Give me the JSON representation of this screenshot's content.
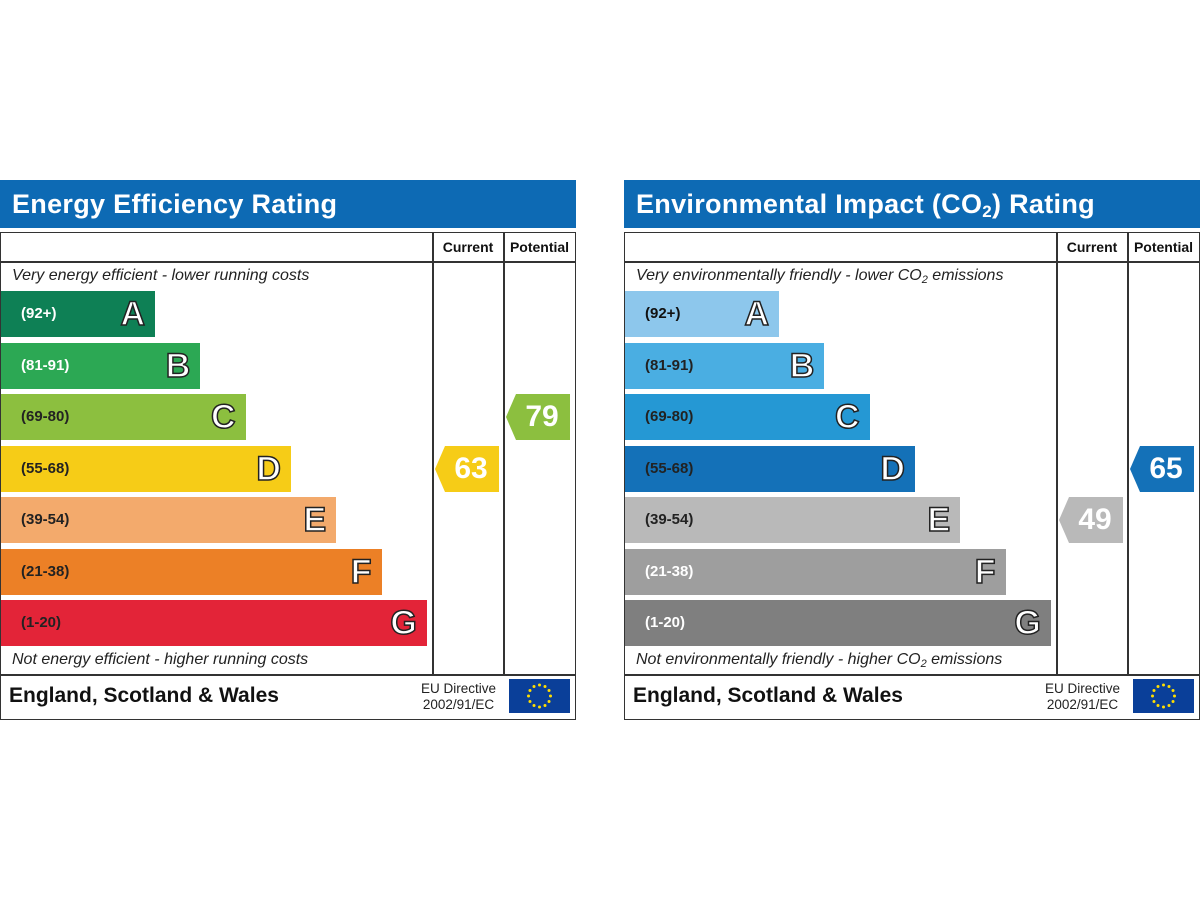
{
  "chart_data": [
    {
      "type": "bar",
      "title": "Energy Efficiency Rating",
      "columns": [
        "Current",
        "Potential"
      ],
      "top_description": "Very energy efficient - lower running costs",
      "bottom_description": "Not energy efficient - higher running costs",
      "bands": [
        {
          "letter": "A",
          "range": "(92+)",
          "color": "#0e8055",
          "range_color": "#ffffff"
        },
        {
          "letter": "B",
          "range": "(81-91)",
          "color": "#2ca854",
          "range_color": "#ffffff"
        },
        {
          "letter": "C",
          "range": "(69-80)",
          "color": "#8cbf3f",
          "range_color": "#222222"
        },
        {
          "letter": "D",
          "range": "(55-68)",
          "color": "#f6cc17",
          "range_color": "#222222"
        },
        {
          "letter": "E",
          "range": "(39-54)",
          "color": "#f3aa6c",
          "range_color": "#222222"
        },
        {
          "letter": "F",
          "range": "(21-38)",
          "color": "#ec8026",
          "range_color": "#222222"
        },
        {
          "letter": "G",
          "range": "(1-20)",
          "color": "#e32438",
          "range_color": "#222222"
        }
      ],
      "current": {
        "value": "63",
        "band": "D",
        "color": "#f6cc17"
      },
      "potential": {
        "value": "79",
        "band": "C",
        "color": "#8cbf3f"
      },
      "footer_region": "England, Scotland & Wales",
      "eu_directive": "EU Directive",
      "eu_directive_code": "2002/91/EC"
    },
    {
      "type": "bar",
      "title": "Environmental Impact (CO2) Rating",
      "columns": [
        "Current",
        "Potential"
      ],
      "top_description": "Very environmentally friendly - lower CO2 emissions",
      "bottom_description": "Not environmentally friendly - higher CO2 emissions",
      "bands": [
        {
          "letter": "A",
          "range": "(92+)",
          "color": "#8dc7ec",
          "range_color": "#111111"
        },
        {
          "letter": "B",
          "range": "(81-91)",
          "color": "#4aaee2",
          "range_color": "#222222"
        },
        {
          "letter": "C",
          "range": "(69-80)",
          "color": "#2598d4",
          "range_color": "#222222"
        },
        {
          "letter": "D",
          "range": "(55-68)",
          "color": "#1471b8",
          "range_color": "#222222"
        },
        {
          "letter": "E",
          "range": "(39-54)",
          "color": "#b9b9b9",
          "range_color": "#222222"
        },
        {
          "letter": "F",
          "range": "(21-38)",
          "color": "#9e9e9e",
          "range_color": "#ffffff"
        },
        {
          "letter": "G",
          "range": "(1-20)",
          "color": "#7f7f7f",
          "range_color": "#ffffff"
        }
      ],
      "current": {
        "value": "49",
        "band": "E",
        "color": "#b9b9b9"
      },
      "potential": {
        "value": "65",
        "band": "D",
        "color": "#1471b8"
      },
      "footer_region": "England, Scotland & Wales",
      "eu_directive": "EU Directive",
      "eu_directive_code": "2002/91/EC"
    }
  ]
}
